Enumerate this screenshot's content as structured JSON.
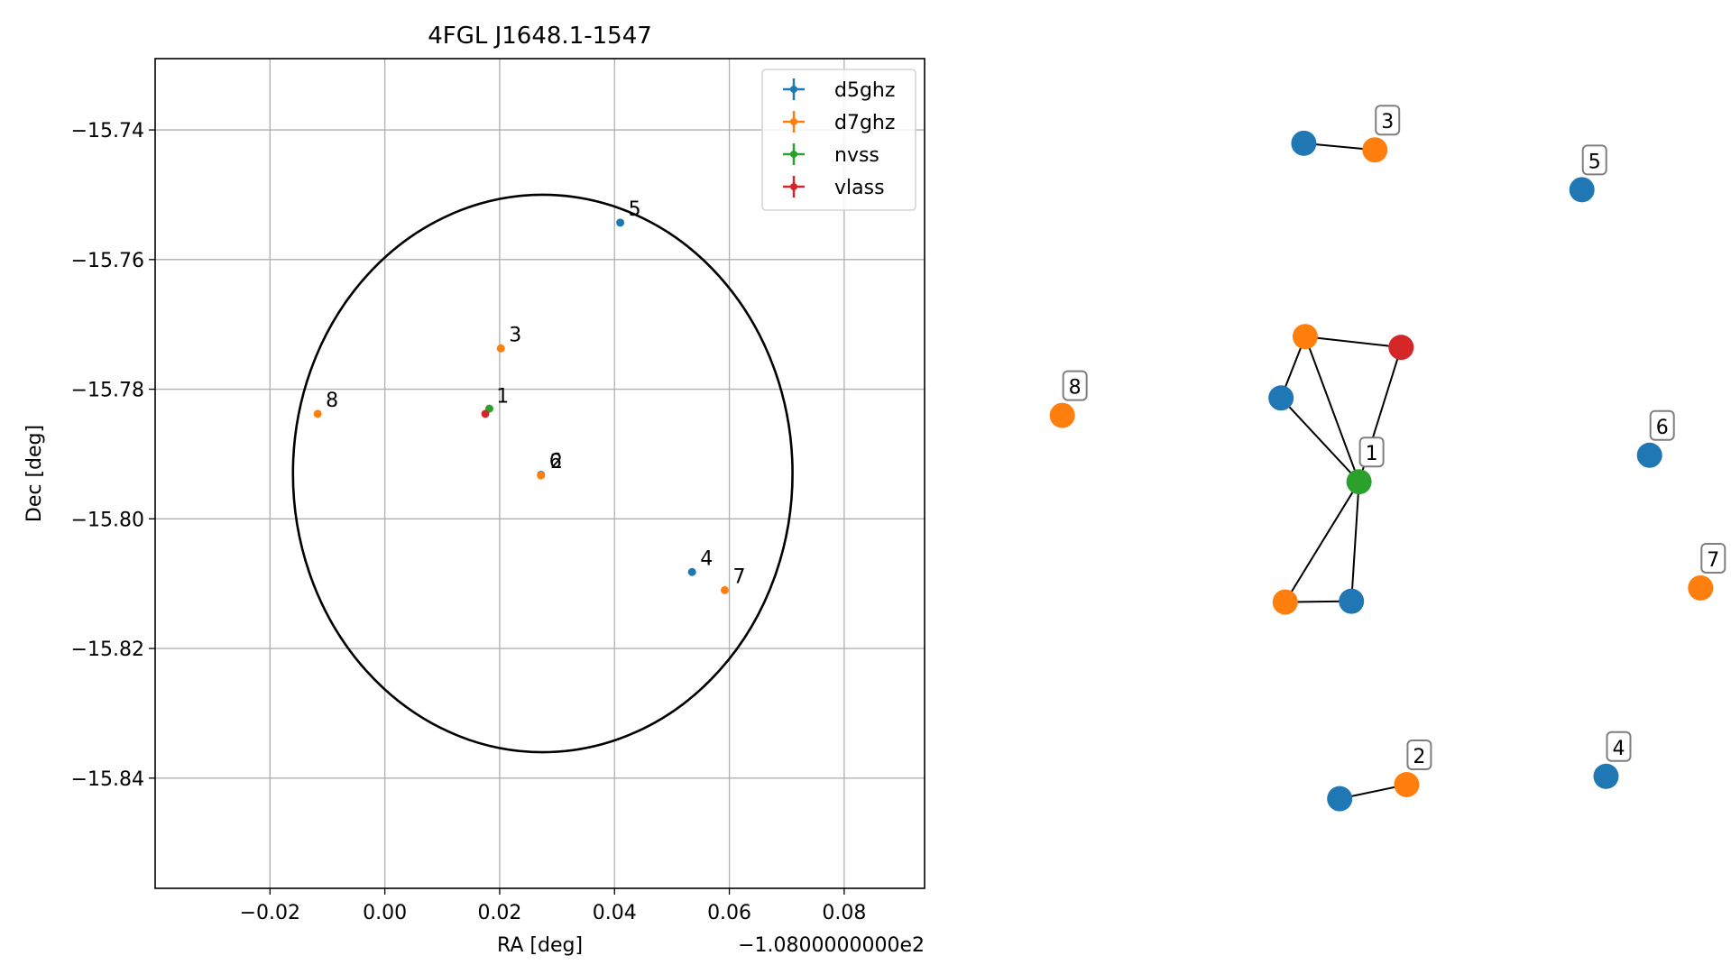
{
  "chart_data": [
    {
      "type": "scatter",
      "title": "4FGL J1648.1-1547",
      "xlabel": "RA [deg]",
      "ylabel": "Dec [deg]",
      "x_offset_label": "−1.0800000000e2",
      "xlim": [
        -0.04,
        0.094
      ],
      "ylim": [
        -15.857,
        -15.729
      ],
      "grid": true,
      "legend_position": "top-right",
      "x_ticks": [
        {
          "value": -0.02,
          "label": "−0.02"
        },
        {
          "value": 0.0,
          "label": "0.00"
        },
        {
          "value": 0.02,
          "label": "0.02"
        },
        {
          "value": 0.04,
          "label": "0.04"
        },
        {
          "value": 0.06,
          "label": "0.06"
        },
        {
          "value": 0.08,
          "label": "0.08"
        }
      ],
      "y_ticks": [
        {
          "value": -15.74,
          "label": "−15.74"
        },
        {
          "value": -15.76,
          "label": "−15.76"
        },
        {
          "value": -15.78,
          "label": "−15.78"
        },
        {
          "value": -15.8,
          "label": "−15.80"
        },
        {
          "value": -15.82,
          "label": "−15.82"
        },
        {
          "value": -15.84,
          "label": "−15.84"
        }
      ],
      "ellipse": {
        "center_x": 0.0275,
        "center_y": -15.793,
        "semi_x": 0.0435,
        "semi_y": 0.043,
        "color": "#000000"
      },
      "series": [
        {
          "name": "d5ghz",
          "color": "#1f77b4",
          "points": [
            {
              "x": 0.041,
              "y": -15.7543
            },
            {
              "x": 0.0535,
              "y": -15.8082
            },
            {
              "x": 0.0272,
              "y": -15.7932
            }
          ]
        },
        {
          "name": "d7ghz",
          "color": "#ff7f0e",
          "points": [
            {
              "x": 0.0202,
              "y": -15.7737
            },
            {
              "x": 0.0272,
              "y": -15.7933
            },
            {
              "x": 0.0592,
              "y": -15.811
            },
            {
              "x": -0.0117,
              "y": -15.7838
            }
          ]
        },
        {
          "name": "nvss",
          "color": "#2ca02c",
          "points": [
            {
              "x": 0.0182,
              "y": -15.783
            }
          ]
        },
        {
          "name": "vlass",
          "color": "#d62728",
          "points": [
            {
              "x": 0.0175,
              "y": -15.7838
            }
          ]
        }
      ],
      "annotations": [
        {
          "text": "5",
          "x": 0.041,
          "y": -15.7543
        },
        {
          "text": "3",
          "x": 0.0202,
          "y": -15.7737
        },
        {
          "text": "8",
          "x": -0.0117,
          "y": -15.7838
        },
        {
          "text": "1",
          "x": 0.018,
          "y": -15.7832
        },
        {
          "text": "6",
          "x": 0.0272,
          "y": -15.7932
        },
        {
          "text": "2",
          "x": 0.0274,
          "y": -15.7933
        },
        {
          "text": "4",
          "x": 0.0535,
          "y": -15.8082
        },
        {
          "text": "7",
          "x": 0.0592,
          "y": -15.811
        }
      ]
    },
    {
      "type": "network",
      "colors": {
        "d5ghz": "#1f77b4",
        "d7ghz": "#ff7f0e",
        "nvss": "#2ca02c",
        "vlass": "#d62728"
      },
      "nodes": [
        {
          "id": "c1_nvss",
          "cat": "nvss",
          "x": 0.525,
          "y": 0.51
        },
        {
          "id": "c1_d7a",
          "cat": "d7ghz",
          "x": 0.447,
          "y": 0.335
        },
        {
          "id": "c1_vlass",
          "cat": "vlass",
          "x": 0.586,
          "y": 0.348
        },
        {
          "id": "c1_d5a",
          "cat": "d5ghz",
          "x": 0.412,
          "y": 0.409
        },
        {
          "id": "c1_d7b",
          "cat": "d7ghz",
          "x": 0.418,
          "y": 0.655
        },
        {
          "id": "c1_d5b",
          "cat": "d5ghz",
          "x": 0.514,
          "y": 0.654
        },
        {
          "id": "c3_d5",
          "cat": "d5ghz",
          "x": 0.445,
          "y": 0.102
        },
        {
          "id": "c3_d7",
          "cat": "d7ghz",
          "x": 0.548,
          "y": 0.11
        },
        {
          "id": "c5_d5",
          "cat": "d5ghz",
          "x": 0.848,
          "y": 0.158
        },
        {
          "id": "c6_d5",
          "cat": "d5ghz",
          "x": 0.946,
          "y": 0.478
        },
        {
          "id": "c8_d7",
          "cat": "d7ghz",
          "x": 0.095,
          "y": 0.43
        },
        {
          "id": "c7_d7",
          "cat": "d7ghz",
          "x": 1.02,
          "y": 0.638
        },
        {
          "id": "c4_d5",
          "cat": "d5ghz",
          "x": 0.883,
          "y": 0.865
        },
        {
          "id": "c2_d5",
          "cat": "d5ghz",
          "x": 0.497,
          "y": 0.892
        },
        {
          "id": "c2_d7",
          "cat": "d7ghz",
          "x": 0.594,
          "y": 0.875
        }
      ],
      "edges": [
        [
          "c1_nvss",
          "c1_d7a"
        ],
        [
          "c1_nvss",
          "c1_vlass"
        ],
        [
          "c1_nvss",
          "c1_d5a"
        ],
        [
          "c1_nvss",
          "c1_d7b"
        ],
        [
          "c1_nvss",
          "c1_d5b"
        ],
        [
          "c1_d7a",
          "c1_vlass"
        ],
        [
          "c1_d7a",
          "c1_d5a"
        ],
        [
          "c1_d7b",
          "c1_d5b"
        ],
        [
          "c3_d5",
          "c3_d7"
        ],
        [
          "c2_d5",
          "c2_d7"
        ]
      ],
      "labels": [
        {
          "text": "1",
          "node": "c1_nvss"
        },
        {
          "text": "3",
          "node": "c3_d7"
        },
        {
          "text": "5",
          "node": "c5_d5"
        },
        {
          "text": "6",
          "node": "c6_d5"
        },
        {
          "text": "8",
          "node": "c8_d7"
        },
        {
          "text": "7",
          "node": "c7_d7"
        },
        {
          "text": "4",
          "node": "c4_d5"
        },
        {
          "text": "2",
          "node": "c2_d7"
        }
      ]
    }
  ]
}
